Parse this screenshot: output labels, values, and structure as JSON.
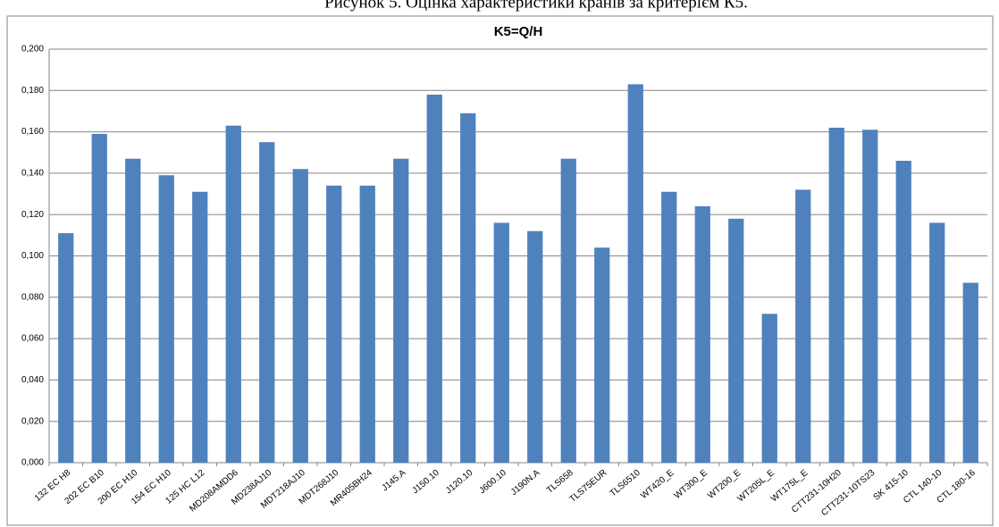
{
  "caption": "Рисунок 5. Оцінка характеристики кранів за критерієм К5.",
  "chart_data": {
    "type": "bar",
    "title": "K5=Q/H",
    "categories": [
      "132 EC H8",
      "202 EC B10",
      "200 EC H10",
      "154 EC H10",
      "125 HC L12",
      "MD208AMDD6",
      "MD238AJ10",
      "MDT218AJ10",
      "MDT268J10",
      "MR405BH24",
      "J145.A",
      "J150.10",
      "J120.10",
      "J600.10",
      "J190N.A",
      "TLS658",
      "TLS75EUR",
      "TLS6510",
      "WT420_E",
      "WT300_E",
      "WT200_E",
      "WT205L_E",
      "WT175L_E",
      "CTT231-10H20",
      "CTT231-10TS23",
      "SK 415-10",
      "CTL 140-10",
      "CTL 180-16"
    ],
    "values": [
      0.111,
      0.159,
      0.147,
      0.139,
      0.131,
      0.163,
      0.155,
      0.142,
      0.134,
      0.134,
      0.147,
      0.178,
      0.169,
      0.116,
      0.112,
      0.147,
      0.104,
      0.183,
      0.131,
      0.124,
      0.118,
      0.072,
      0.132,
      0.162,
      0.161,
      0.146,
      0.116,
      0.087
    ],
    "color": "#4f81bd",
    "ylim": [
      0,
      0.2
    ],
    "yticks": [
      {
        "value": 0,
        "label": "0,000"
      },
      {
        "value": 0.02,
        "label": "0,020"
      },
      {
        "value": 0.04,
        "label": "0,040"
      },
      {
        "value": 0.06,
        "label": "0,060"
      },
      {
        "value": 0.08,
        "label": "0,080"
      },
      {
        "value": 0.1,
        "label": "0,100"
      },
      {
        "value": 0.12,
        "label": "0,120"
      },
      {
        "value": 0.14,
        "label": "0,140"
      },
      {
        "value": 0.16,
        "label": "0,160"
      },
      {
        "value": 0.18,
        "label": "0,180"
      },
      {
        "value": 0.2,
        "label": "0,200"
      }
    ],
    "grid": true
  }
}
